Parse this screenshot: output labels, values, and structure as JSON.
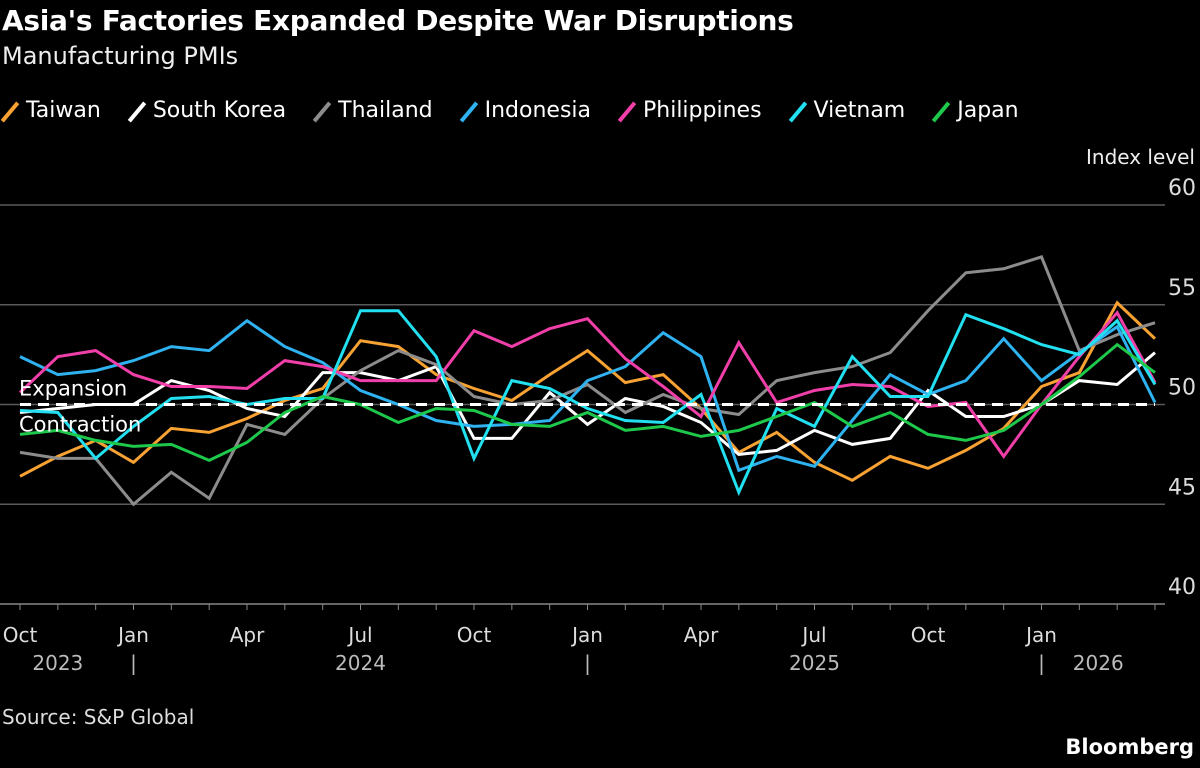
{
  "title": "Asia's Factories Expanded Despite War Disruptions",
  "subtitle": "Manufacturing PMIs",
  "source": "Source: S&P Global",
  "brand": "Bloomberg",
  "chart_data": {
    "type": "line",
    "title": "Asia's Factories Expanded Despite War Disruptions",
    "subtitle": "Manufacturing PMIs",
    "ylabel": "Index level",
    "ylim": [
      40,
      60
    ],
    "yticks": [
      40,
      45,
      50,
      55,
      60
    ],
    "grid": true,
    "legend_position": "top",
    "x": [
      "2023-10",
      "2023-11",
      "2023-12",
      "2024-01",
      "2024-02",
      "2024-03",
      "2024-04",
      "2024-05",
      "2024-06",
      "2024-07",
      "2024-08",
      "2024-09",
      "2024-10",
      "2024-11",
      "2024-12",
      "2025-01",
      "2025-02",
      "2025-03",
      "2025-04",
      "2025-05",
      "2025-06",
      "2025-07",
      "2025-08",
      "2025-09",
      "2025-10",
      "2025-11",
      "2025-12",
      "2026-01",
      "2026-02",
      "2026-03",
      "2026-04"
    ],
    "xtick_labels": [
      {
        "month": "2023-10",
        "label": "Oct"
      },
      {
        "month": "2024-01",
        "label": "Jan"
      },
      {
        "month": "2024-04",
        "label": "Apr"
      },
      {
        "month": "2024-07",
        "label": "Jul"
      },
      {
        "month": "2024-10",
        "label": "Oct"
      },
      {
        "month": "2025-01",
        "label": "Jan"
      },
      {
        "month": "2025-04",
        "label": "Apr"
      },
      {
        "month": "2025-07",
        "label": "Jul"
      },
      {
        "month": "2025-10",
        "label": "Oct"
      },
      {
        "month": "2026-01",
        "label": "Jan"
      }
    ],
    "year_labels": [
      {
        "month": "2023-11",
        "label": "2023"
      },
      {
        "month": "2024-07",
        "label": "2024"
      },
      {
        "month": "2025-07",
        "label": "2025"
      },
      {
        "month": "2026-02.5",
        "label": "2026"
      }
    ],
    "year_separators": [
      "2024-01",
      "2025-01",
      "2026-01"
    ],
    "reference_line": {
      "value": 50,
      "label_above": "Expansion",
      "label_below": "Contraction",
      "color": "#ffffff",
      "style": "dashed"
    },
    "series": [
      {
        "name": "Taiwan",
        "color": "#f7a233",
        "values": [
          46.4,
          47.4,
          48.2,
          47.1,
          48.8,
          48.6,
          49.3,
          50.2,
          50.8,
          53.2,
          52.9,
          51.5,
          50.8,
          50.2,
          51.5,
          52.7,
          51.1,
          51.5,
          49.8,
          47.6,
          48.6,
          47.1,
          46.2,
          47.4,
          46.8,
          47.7,
          48.8,
          50.9,
          51.6,
          55.1,
          53.3
        ]
      },
      {
        "name": "South Korea",
        "color": "#ffffff",
        "values": [
          49.6,
          49.8,
          50.0,
          50.0,
          51.2,
          50.7,
          49.8,
          49.4,
          51.6,
          51.6,
          51.2,
          51.9,
          48.3,
          48.3,
          50.6,
          49.0,
          50.3,
          49.9,
          49.1,
          47.5,
          47.7,
          48.7,
          48.0,
          48.3,
          50.7,
          49.4,
          49.4,
          50.0,
          51.2,
          51.0,
          52.6
        ]
      },
      {
        "name": "Thailand",
        "color": "#8c8c8c",
        "values": [
          47.6,
          47.3,
          47.3,
          45.0,
          46.6,
          45.3,
          49.0,
          48.5,
          50.3,
          51.7,
          52.7,
          52.0,
          50.4,
          50.0,
          50.2,
          51.0,
          49.6,
          50.5,
          49.8,
          49.5,
          51.2,
          51.6,
          51.9,
          52.6,
          54.7,
          56.6,
          56.8,
          57.4,
          52.7,
          53.5,
          54.1
        ]
      },
      {
        "name": "Indonesia",
        "color": "#2fb2f0",
        "values": [
          52.4,
          51.5,
          51.7,
          52.2,
          52.9,
          52.7,
          54.2,
          52.9,
          52.1,
          50.7,
          50.0,
          49.2,
          48.9,
          49.0,
          49.2,
          51.2,
          51.9,
          53.6,
          52.4,
          46.7,
          47.4,
          46.9,
          49.2,
          51.5,
          50.5,
          51.2,
          53.3,
          51.2,
          52.6,
          53.9,
          50.1
        ]
      },
      {
        "name": "Philippines",
        "color": "#f03fa8",
        "values": [
          50.6,
          52.4,
          52.7,
          51.5,
          50.9,
          50.9,
          50.8,
          52.2,
          51.9,
          51.2,
          51.2,
          51.2,
          53.7,
          52.9,
          53.8,
          54.3,
          52.3,
          50.9,
          49.4,
          53.1,
          50.1,
          50.7,
          51.0,
          50.9,
          49.9,
          50.1,
          47.4,
          50.0,
          52.4,
          54.6,
          51.1
        ]
      },
      {
        "name": "Vietnam",
        "color": "#22e0f0",
        "values": [
          49.7,
          49.6,
          47.3,
          48.9,
          50.3,
          50.4,
          50.0,
          50.3,
          50.3,
          54.7,
          54.7,
          52.4,
          47.3,
          51.2,
          50.8,
          49.8,
          49.2,
          49.1,
          50.5,
          45.6,
          49.8,
          48.9,
          52.4,
          50.4,
          50.4,
          54.5,
          53.8,
          53.0,
          52.5,
          54.2,
          51.0
        ]
      },
      {
        "name": "Japan",
        "color": "#1ec84a",
        "values": [
          48.5,
          48.7,
          48.2,
          47.9,
          48.0,
          47.2,
          48.1,
          49.6,
          50.4,
          50.0,
          49.1,
          49.8,
          49.7,
          49.0,
          48.9,
          49.6,
          48.7,
          48.9,
          48.4,
          48.7,
          49.4,
          50.1,
          48.9,
          49.6,
          48.5,
          48.2,
          48.7,
          50.0,
          51.4,
          53.0,
          51.6
        ]
      }
    ]
  }
}
